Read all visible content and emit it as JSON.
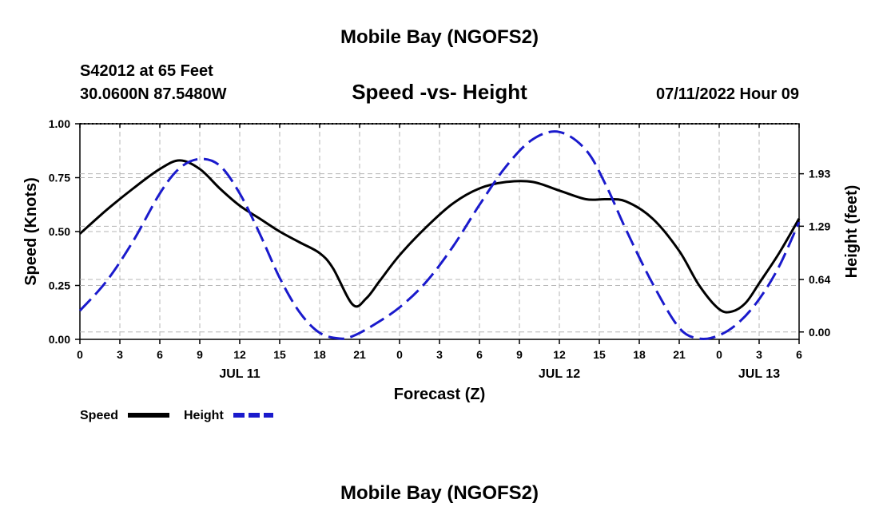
{
  "page": {
    "title_top": "Mobile Bay (NGOFS2)",
    "title_bottom": "Mobile Bay (NGOFS2)"
  },
  "header": {
    "station": "S42012 at 65 Feet",
    "coords": "30.0600N  87.5480W",
    "subtitle": "Speed -vs- Height",
    "datetime": "07/11/2022 Hour 09"
  },
  "legend": {
    "speed_label": "Speed",
    "height_label": "Height"
  },
  "colors": {
    "speed": "#000000",
    "height": "#1a1acc",
    "grid": "#b4b4b4"
  },
  "chart_data": {
    "type": "line",
    "title": "Speed -vs- Height",
    "xlabel": "Forecast (Z)",
    "ylabel": "Speed (Knots)",
    "ylabel_right": "Height (feet)",
    "x_range_hours": [
      0,
      54
    ],
    "x_tick_labels": [
      "0",
      "3",
      "6",
      "9",
      "12",
      "15",
      "18",
      "21",
      "0",
      "3",
      "6",
      "9",
      "12",
      "15",
      "18",
      "21",
      "0",
      "3",
      "6"
    ],
    "x_date_labels": [
      {
        "label": "JUL 11",
        "hour": 12
      },
      {
        "label": "JUL 12",
        "hour": 36
      },
      {
        "label": "JUL 13",
        "hour": 51
      }
    ],
    "y_left": {
      "range": [
        0,
        1
      ],
      "ticks": [
        "0.00",
        "0.25",
        "0.50",
        "0.75",
        "1.00"
      ],
      "tick_values": [
        0,
        0.25,
        0.5,
        0.75,
        1.0
      ]
    },
    "y_right": {
      "range": [
        -0.09,
        2.54
      ],
      "ticks": [
        "0.00",
        "0.64",
        "1.29",
        "1.93"
      ],
      "tick_values": [
        0,
        0.64,
        1.29,
        1.93
      ]
    },
    "grid": true,
    "series": [
      {
        "name": "Speed",
        "axis": "left",
        "style": "solid",
        "x": [
          0,
          2,
          4,
          6,
          7.5,
          9,
          10.5,
          12,
          13.5,
          15,
          16.5,
          18,
          19,
          20.5,
          21.5,
          22.5,
          24,
          26,
          28,
          30,
          32,
          34,
          36,
          38,
          39.5,
          41,
          43,
          45,
          46.5,
          48,
          49,
          50,
          51,
          52.5,
          54
        ],
        "values": [
          0.49,
          0.6,
          0.7,
          0.79,
          0.83,
          0.79,
          0.7,
          0.62,
          0.56,
          0.5,
          0.45,
          0.4,
          0.33,
          0.16,
          0.19,
          0.27,
          0.39,
          0.52,
          0.63,
          0.7,
          0.73,
          0.73,
          0.69,
          0.65,
          0.65,
          0.64,
          0.56,
          0.41,
          0.25,
          0.14,
          0.13,
          0.17,
          0.26,
          0.4,
          0.56
        ]
      },
      {
        "name": "Height",
        "axis": "right",
        "style": "dashed",
        "x": [
          0,
          2,
          4,
          6,
          7.5,
          9,
          10.5,
          12,
          13.5,
          15,
          16.5,
          18,
          19.5,
          20.5,
          22,
          24,
          26,
          28,
          30,
          32,
          34,
          36,
          38,
          39.5,
          41,
          43,
          45,
          46.5,
          48,
          49.5,
          51,
          52.5,
          54
        ],
        "values": [
          0.26,
          0.62,
          1.11,
          1.69,
          2.0,
          2.11,
          2.03,
          1.69,
          1.2,
          0.66,
          0.24,
          -0.01,
          -0.08,
          -0.05,
          0.08,
          0.3,
          0.61,
          1.04,
          1.55,
          2.02,
          2.35,
          2.44,
          2.22,
          1.79,
          1.25,
          0.59,
          0.05,
          -0.08,
          -0.04,
          0.12,
          0.4,
          0.8,
          1.34
        ]
      }
    ]
  }
}
